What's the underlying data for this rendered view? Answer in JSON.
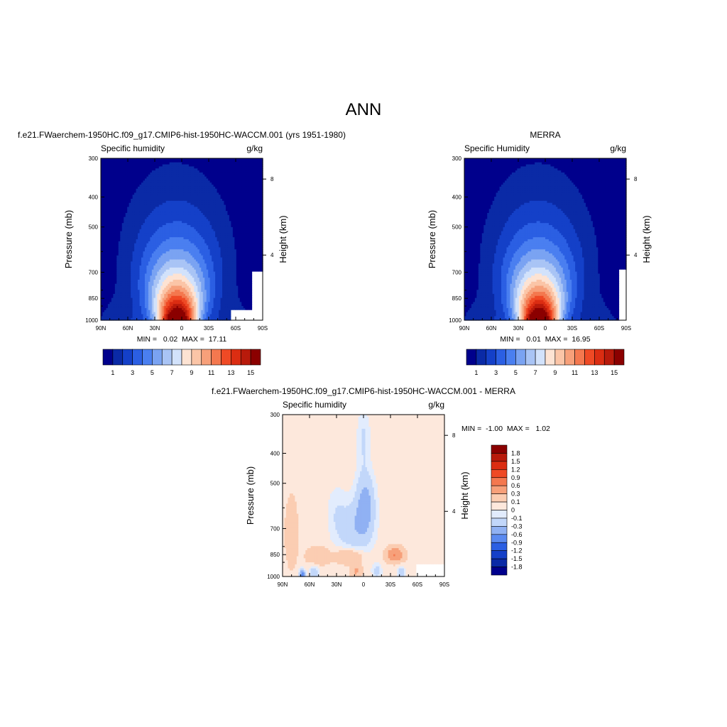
{
  "page_title": "ANN",
  "colors": {
    "seq": [
      "#00008c",
      "#0a2aa6",
      "#1440c8",
      "#2b5fe3",
      "#4a7ff0",
      "#7aa3f2",
      "#a9c4f5",
      "#d2e2fb",
      "#fde3d3",
      "#fbc5a7",
      "#f7a07a",
      "#f4784f",
      "#ef4a25",
      "#db2d12",
      "#b81a0b",
      "#8b0000"
    ],
    "div": [
      "#00008c",
      "#0a2aa6",
      "#1440c8",
      "#2b5fe3",
      "#5b8af0",
      "#90b1f3",
      "#c2d7fa",
      "#e2ecfd",
      "#fde8dc",
      "#fbcdb2",
      "#f7a07a",
      "#f4784f",
      "#ef4a25",
      "#db2d12",
      "#b81a0b",
      "#8b0000"
    ],
    "blank": "#ffffff"
  },
  "chart_data": [
    {
      "id": "model",
      "type": "contour",
      "header": "f.e21.FWaerchem-1950HC.f09_g17.CMIP6-hist-1950HC-WACCM.001 (yrs 1951-1980)",
      "subtitle_left": "Specific humidity",
      "subtitle_right": "g/kg",
      "ylabel": "Pressure (mb)",
      "ylabel_right": "Height (km)",
      "x_ticks": [
        "90N",
        "60N",
        "30N",
        "0",
        "30S",
        "60S",
        "90S"
      ],
      "y_ticks": [
        "300",
        "400",
        "500",
        "700",
        "850",
        "1000"
      ],
      "y_right_ticks": [
        "8",
        "4"
      ],
      "stats": "MIN =   0.02  MAX =  17.11",
      "min": 0.02,
      "max": 17.11,
      "levels": [
        1,
        2,
        3,
        4,
        5,
        6,
        7,
        8,
        9,
        10,
        11,
        12,
        13,
        14,
        15
      ],
      "colorbar_labels": [
        "1",
        "3",
        "5",
        "7",
        "9",
        "11",
        "13",
        "15"
      ],
      "peak": 17.11,
      "center_lat": 5
    },
    {
      "id": "obs",
      "type": "contour",
      "header": "MERRA",
      "subtitle_left": "Specific Humidity",
      "subtitle_right": "g/kg",
      "ylabel": "Pressure (mb)",
      "ylabel_right": "Height (km)",
      "x_ticks": [
        "90N",
        "60N",
        "30N",
        "0",
        "30S",
        "60S",
        "90S"
      ],
      "y_ticks": [
        "300",
        "400",
        "500",
        "700",
        "850",
        "1000"
      ],
      "y_right_ticks": [
        "8",
        "4"
      ],
      "stats": "MIN =   0.01  MAX =  16.95",
      "min": 0.01,
      "max": 16.95,
      "levels": [
        1,
        2,
        3,
        4,
        5,
        6,
        7,
        8,
        9,
        10,
        11,
        12,
        13,
        14,
        15
      ],
      "colorbar_labels": [
        "1",
        "3",
        "5",
        "7",
        "9",
        "11",
        "13",
        "15"
      ],
      "peak": 16.95,
      "center_lat": 7
    },
    {
      "id": "diff",
      "type": "contour",
      "header": "f.e21.FWaerchem-1950HC.f09_g17.CMIP6-hist-1950HC-WACCM.001 - MERRA",
      "subtitle_left": "Specific humidity",
      "subtitle_right": "g/kg",
      "ylabel": "Pressure (mb)",
      "ylabel_right": "Height (km)",
      "x_ticks": [
        "90N",
        "60N",
        "30N",
        "0",
        "30S",
        "60S",
        "90S"
      ],
      "y_ticks": [
        "300",
        "400",
        "500",
        "700",
        "850",
        "1000"
      ],
      "y_right_ticks": [
        "8",
        "4"
      ],
      "stats": "MIN =  -1.00  MAX =   1.02",
      "min": -1.0,
      "max": 1.02,
      "levels": [
        -1.8,
        -1.5,
        -1.2,
        -0.9,
        -0.6,
        -0.3,
        -0.1,
        0,
        0.1,
        0.3,
        0.6,
        0.9,
        1.2,
        1.5,
        1.8
      ],
      "colorbar_labels": [
        "1.8",
        "1.5",
        "1.2",
        "0.9",
        "0.6",
        "0.3",
        "0.1",
        "0",
        "-0.1",
        "-0.3",
        "-0.6",
        "-0.9",
        "-1.2",
        "-1.5",
        "-1.8"
      ]
    }
  ]
}
